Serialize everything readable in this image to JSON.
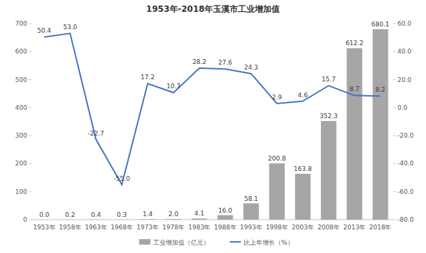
{
  "chart_data": {
    "type": "bar",
    "title": "1953年-2018年玉溪市工业增加值",
    "categories": [
      "1953年",
      "1958年",
      "1963年",
      "1968年",
      "1973年",
      "1978年",
      "1983年",
      "1988年",
      "1993年",
      "1998年",
      "2003年",
      "2008年",
      "2013年",
      "2018年"
    ],
    "series": [
      {
        "name": "工业增加值（亿元）",
        "type": "bar",
        "color": "#a6a6a6",
        "values": [
          0.0,
          0.2,
          0.4,
          0.3,
          1.4,
          2.0,
          4.1,
          16.0,
          58.1,
          200.8,
          163.8,
          352.3,
          612.2,
          680.1
        ],
        "value_labels": [
          "0.0",
          "0.2",
          "0.4",
          "0.3",
          "1.4",
          "2.0",
          "4.1",
          "16.0",
          "58.1",
          "200.8",
          "163.8",
          "352.3",
          "612.2",
          "680.1"
        ]
      },
      {
        "name": "比上年增长（%）",
        "type": "line",
        "color": "#4472c4",
        "axis": "y2",
        "values": [
          50.4,
          53.0,
          -22.7,
          -55.0,
          17.2,
          10.7,
          28.2,
          27.6,
          24.3,
          2.9,
          4.6,
          15.7,
          8.7,
          8.2
        ],
        "value_labels": [
          "50.4",
          "53.0",
          "-22.7",
          "-55.0",
          "17.2",
          "10.7",
          "28.2",
          "27.6",
          "24.3",
          "2.9",
          "4.6",
          "15.7",
          "8.7",
          "8.2"
        ]
      }
    ],
    "ylim": [
      0,
      700
    ],
    "yticks": [
      0,
      100,
      200,
      300,
      400,
      500,
      600,
      700
    ],
    "y2lim": [
      -80,
      60
    ],
    "y2ticks": [
      {
        "value": -80,
        "label": "-80.0"
      },
      {
        "value": -60,
        "label": "-60.0"
      },
      {
        "value": -40,
        "label": "-40.0"
      },
      {
        "value": -20,
        "label": "-20.0"
      },
      {
        "value": 0,
        "label": "0.0"
      },
      {
        "value": 20,
        "label": "20.0"
      },
      {
        "value": 40,
        "label": "40.0"
      },
      {
        "value": 60,
        "label": "60.0"
      }
    ],
    "data_labels": true,
    "legend": "bottom",
    "grid": false
  }
}
